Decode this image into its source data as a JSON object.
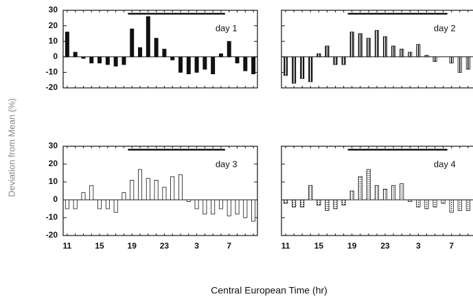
{
  "figure": {
    "ylabel": "Deviation from Mean (%)",
    "xlabel": "Central European Time (hr)"
  },
  "chart_data": [
    {
      "type": "bar",
      "title": "day 1",
      "bar_style": "solid",
      "color": "#111111",
      "categories": [
        null,
        null,
        null,
        null,
        null,
        null,
        null,
        null,
        null,
        null,
        null,
        null,
        null,
        null,
        null,
        null,
        null,
        null,
        null,
        null,
        null,
        null,
        null,
        null
      ],
      "values": [
        16,
        3,
        -1,
        -4,
        -4,
        -5,
        -6,
        -5,
        18,
        6,
        26,
        12,
        5,
        -2,
        -10,
        -11,
        -10,
        -8,
        -11,
        2,
        10,
        -4,
        -9,
        -11
      ],
      "ylim": [
        -20,
        30
      ],
      "yticks": [
        -20,
        -10,
        0,
        10,
        20,
        30
      ],
      "show_ytick_labels": true
    },
    {
      "type": "bar",
      "title": "day 2",
      "bar_style": "hatched",
      "color": "#111111",
      "categories": [
        null,
        null,
        null,
        null,
        null,
        null,
        null,
        null,
        null,
        null,
        null,
        null,
        null,
        null,
        null,
        null,
        null,
        null,
        null,
        null,
        null,
        null,
        null,
        null
      ],
      "values": [
        -12,
        -17,
        -14,
        -16,
        2,
        7,
        -5,
        -5,
        16,
        15,
        12,
        17,
        13,
        7,
        5,
        3,
        8,
        1,
        -3,
        0,
        -4,
        -10,
        -8,
        -12
      ],
      "ylim": [
        -20,
        30
      ],
      "yticks": [
        -20,
        -10,
        0,
        10,
        20,
        30
      ],
      "show_ytick_labels": false
    },
    {
      "type": "bar",
      "title": "day 3",
      "bar_style": "open",
      "color": "#111111",
      "categories": [
        "11",
        null,
        null,
        null,
        "15",
        null,
        null,
        null,
        "19",
        null,
        null,
        null,
        "23",
        null,
        null,
        null,
        "3",
        null,
        null,
        null,
        "7",
        null,
        null,
        null
      ],
      "values": [
        -5,
        -5,
        4,
        8,
        -5,
        -5,
        -7,
        4,
        11,
        17,
        12,
        11,
        7,
        13,
        14,
        -1,
        -5,
        -8,
        -8,
        -5,
        -9,
        -8,
        -10,
        -12
      ],
      "ylim": [
        -20,
        30
      ],
      "yticks": [
        -20,
        -10,
        0,
        10,
        20,
        30
      ],
      "show_ytick_labels": true
    },
    {
      "type": "bar",
      "title": "day 4",
      "bar_style": "dotted",
      "color": "#111111",
      "categories": [
        "11",
        null,
        null,
        null,
        "15",
        null,
        null,
        null,
        "19",
        null,
        null,
        null,
        "23",
        null,
        null,
        null,
        "3",
        null,
        null,
        null,
        "7",
        null,
        null,
        null
      ],
      "values": [
        -2,
        -4,
        -4,
        8,
        -3,
        -6,
        -5,
        -3,
        5,
        13,
        17,
        8,
        6,
        8,
        9,
        -1,
        -4,
        -5,
        -4,
        -2,
        -7,
        -6,
        -6,
        -10
      ],
      "ylim": [
        -20,
        30
      ],
      "yticks": [
        -20,
        -10,
        0,
        10,
        20,
        30
      ],
      "show_ytick_labels": false
    }
  ]
}
